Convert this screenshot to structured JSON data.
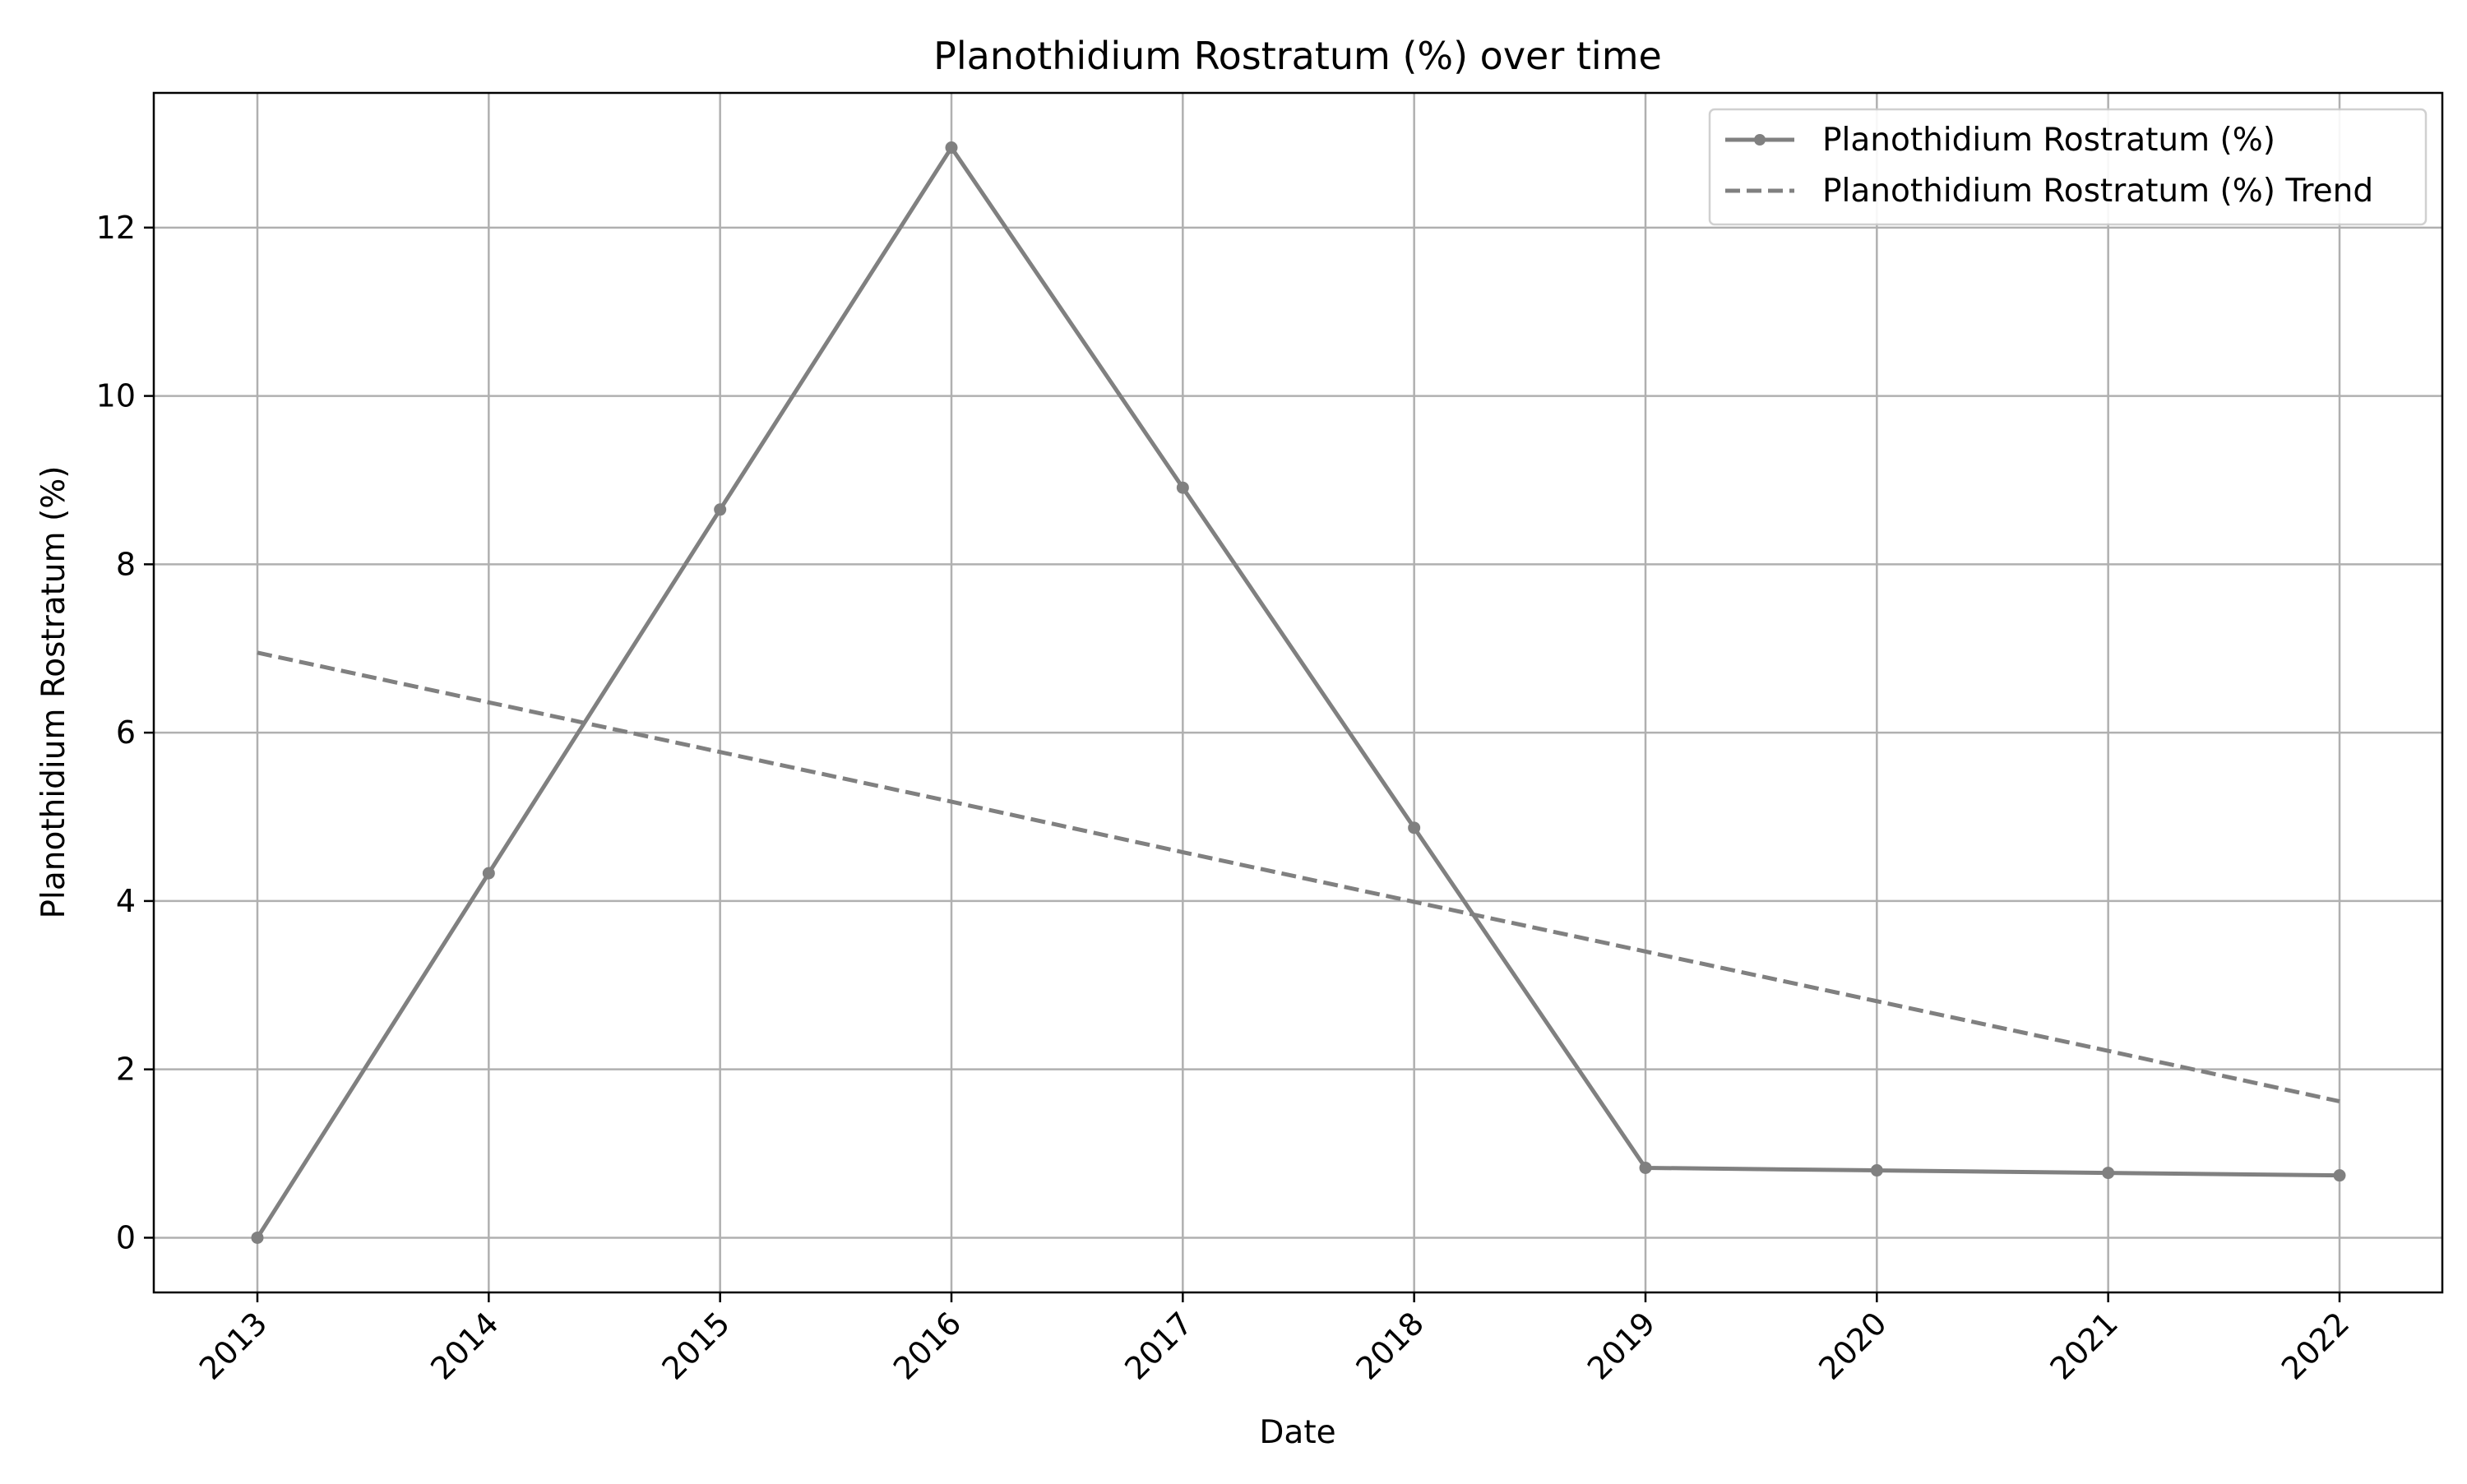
{
  "chart_data": {
    "type": "line",
    "title": "Planothidium Rostratum (%) over time",
    "xlabel": "Date",
    "ylabel": "Planothidium Rostratum (%)",
    "x": [
      "2013",
      "2014",
      "2015",
      "2016",
      "2017",
      "2018",
      "2019",
      "2020",
      "2021",
      "2022"
    ],
    "ylim": [
      -0.65,
      13.6
    ],
    "yticks": [
      0,
      2,
      4,
      6,
      8,
      10,
      12
    ],
    "grid": true,
    "legend_position": "top-right",
    "series": [
      {
        "name": "Planothidium Rostratum (%)",
        "style": "solid",
        "markers": true,
        "color": "#808080",
        "values": [
          0.0,
          4.33,
          8.65,
          12.95,
          8.91,
          4.87,
          0.83,
          0.8,
          0.77,
          0.74
        ]
      },
      {
        "name": "Planothidium Rostratum (%) Trend",
        "style": "dashed",
        "markers": false,
        "color": "#808080",
        "values": [
          6.95,
          6.36,
          5.77,
          5.18,
          4.58,
          3.99,
          3.4,
          2.81,
          2.22,
          1.62
        ]
      }
    ]
  }
}
